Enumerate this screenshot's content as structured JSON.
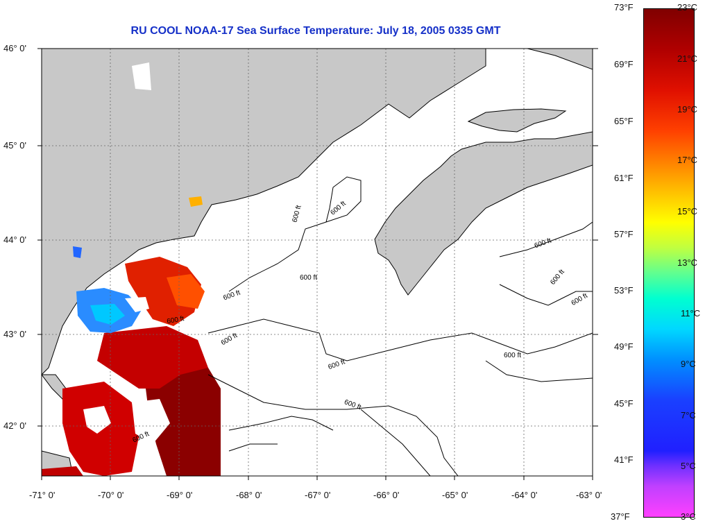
{
  "title": "RU COOL  NOAA-17  Sea Surface Temperature:  July 18, 2005 0335 GMT",
  "map": {
    "lon_labels": [
      "-71° 0'",
      "-70° 0'",
      "-69° 0'",
      "-68° 0'",
      "-67° 0'",
      "-66° 0'",
      "-65° 0'",
      "-64° 0'",
      "-63° 0'"
    ],
    "lat_labels": [
      "46° 0'",
      "45° 0'",
      "44° 0'",
      "43° 0'",
      "42° 0'"
    ],
    "contour_label": "600 ft",
    "colors": {
      "land": "#c8c8c8",
      "ocean": "#ffffff",
      "grid": "#666666"
    }
  },
  "colorbar": {
    "fahrenheit": [
      "73°F",
      "69°F",
      "65°F",
      "61°F",
      "57°F",
      "53°F",
      "49°F",
      "45°F",
      "41°F",
      "37°F"
    ],
    "celsius": [
      "23°C",
      "21°C",
      "19°C",
      "17°C",
      "15°C",
      "13°C",
      "11°C",
      "9°C",
      "7°C",
      "5°C",
      "3°C"
    ]
  }
}
